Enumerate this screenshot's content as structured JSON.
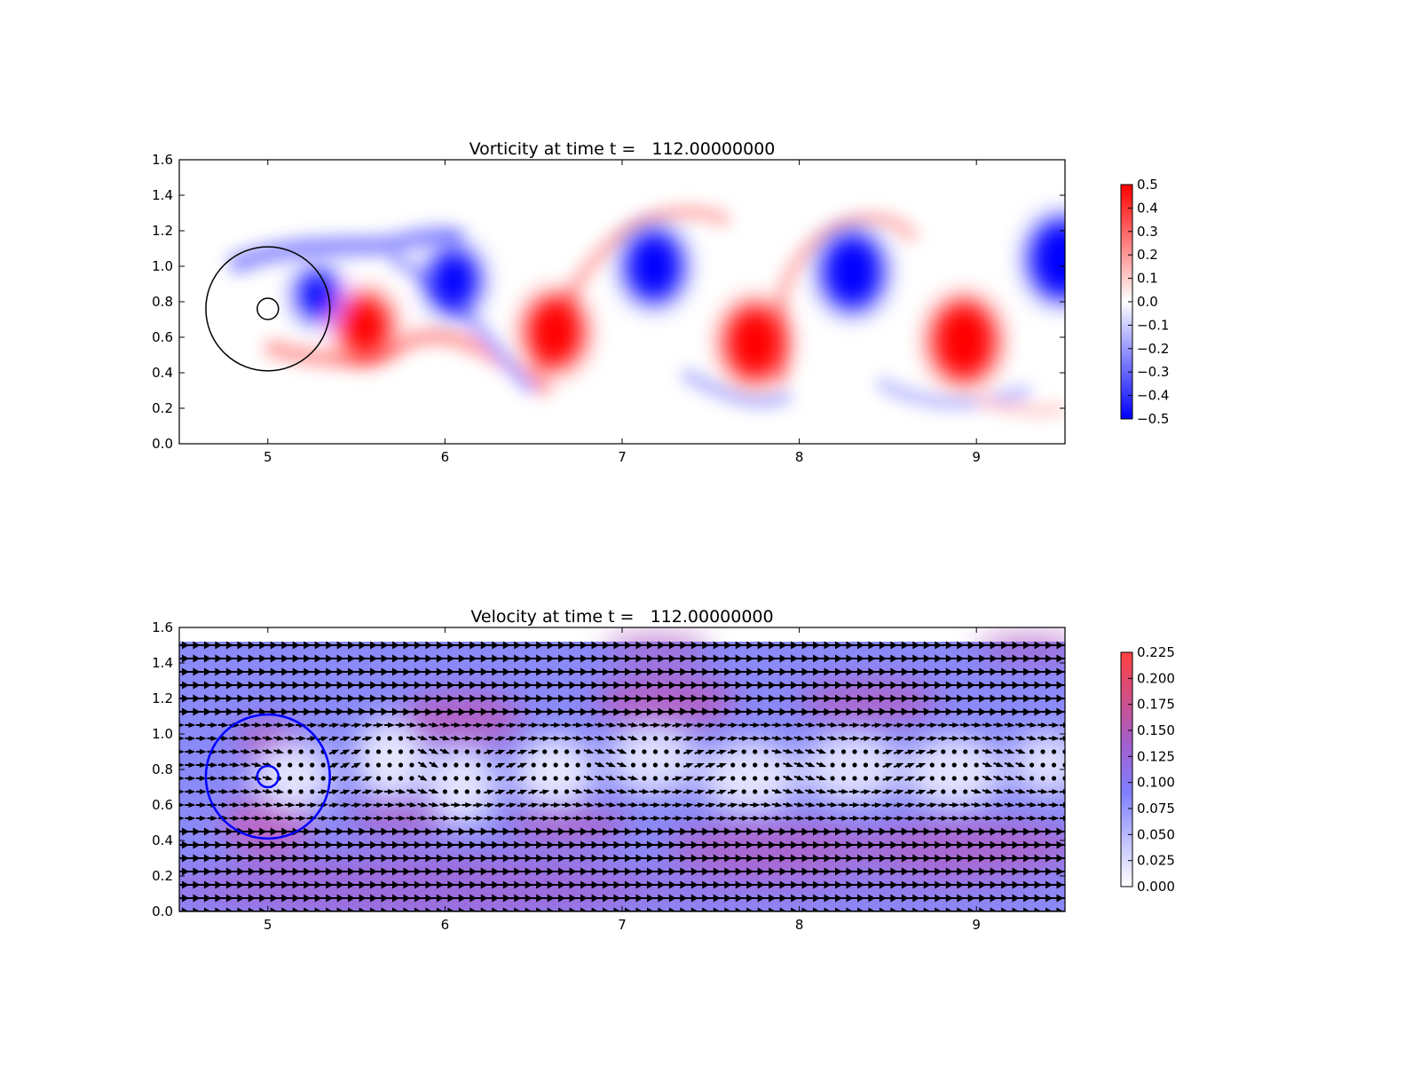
{
  "chart_data": [
    {
      "type": "heatmap",
      "title": "Vorticity at time t =   112.00000000",
      "xlabel": "",
      "ylabel": "",
      "xlim": [
        4.5,
        9.5
      ],
      "ylim": [
        0.0,
        1.6
      ],
      "x_ticks": [
        "5",
        "6",
        "7",
        "8",
        "9"
      ],
      "y_ticks": [
        "0.0",
        "0.2",
        "0.4",
        "0.6",
        "0.8",
        "1.0",
        "1.2",
        "1.4",
        "1.6"
      ],
      "colormap": {
        "low": "#0000ff",
        "mid": "#ffffff",
        "high": "#ff0000"
      },
      "colorbar": {
        "range": [
          -0.5,
          0.5
        ],
        "ticks": [
          "0.5",
          "0.4",
          "0.3",
          "0.2",
          "0.1",
          "0.0",
          "−0.1",
          "−0.2",
          "−0.3",
          "−0.4",
          "−0.5"
        ]
      },
      "vortices": [
        {
          "x": 5.28,
          "y": 0.84,
          "value": -0.5,
          "r": 0.12
        },
        {
          "x": 5.55,
          "y": 0.66,
          "value": 0.5,
          "r": 0.15
        },
        {
          "x": 6.05,
          "y": 0.92,
          "value": -0.5,
          "r": 0.15
        },
        {
          "x": 6.62,
          "y": 0.63,
          "value": 0.5,
          "r": 0.17
        },
        {
          "x": 7.18,
          "y": 1.0,
          "value": -0.5,
          "r": 0.17
        },
        {
          "x": 7.75,
          "y": 0.57,
          "value": 0.5,
          "r": 0.18
        },
        {
          "x": 8.3,
          "y": 0.97,
          "value": -0.5,
          "r": 0.18
        },
        {
          "x": 8.93,
          "y": 0.58,
          "value": 0.5,
          "r": 0.19
        },
        {
          "x": 9.48,
          "y": 1.04,
          "value": -0.5,
          "r": 0.19
        }
      ],
      "circles": [
        {
          "cx": 5.0,
          "cy": 0.76,
          "r": 0.35,
          "color": "#000000"
        },
        {
          "cx": 5.0,
          "cy": 0.76,
          "r": 0.06,
          "color": "#000000"
        }
      ]
    },
    {
      "type": "heatmap",
      "title": "Velocity at time t =   112.00000000",
      "xlabel": "",
      "ylabel": "",
      "xlim": [
        4.5,
        9.5
      ],
      "ylim": [
        0.0,
        1.6
      ],
      "x_ticks": [
        "5",
        "6",
        "7",
        "8",
        "9"
      ],
      "y_ticks": [
        "0.0",
        "0.2",
        "0.4",
        "0.6",
        "0.8",
        "1.0",
        "1.2",
        "1.4",
        "1.6"
      ],
      "colormap": {
        "low": "#ffffff",
        "mid": "#8080ff",
        "high": "#ff3b3b"
      },
      "colorbar": {
        "range": [
          0.0,
          0.225
        ],
        "ticks": [
          "0.225",
          "0.200",
          "0.175",
          "0.150",
          "0.125",
          "0.100",
          "0.075",
          "0.050",
          "0.025",
          "0.000"
        ]
      },
      "field_top": 1.52,
      "quiver": {
        "x_start": 4.5,
        "x_step": 0.0625,
        "y_start": 0.0,
        "y_step": 0.075
      },
      "circles": [
        {
          "cx": 5.0,
          "cy": 0.76,
          "r": 0.35,
          "color": "#0000ff"
        },
        {
          "cx": 5.0,
          "cy": 0.76,
          "r": 0.06,
          "color": "#0000ff"
        }
      ]
    }
  ]
}
